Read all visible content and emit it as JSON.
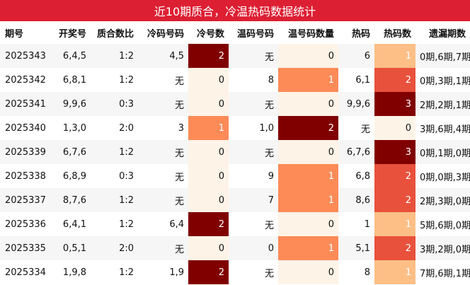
{
  "title": "近10期质合，冷温热码数据统计",
  "columns": [
    "期号",
    "开奖号",
    "质合数比",
    "冷码号码",
    "冷号数",
    "温码号码",
    "温号码数量",
    "热码",
    "热码数",
    "遗漏期数"
  ],
  "heat_colors": {
    "cold": {
      "0": "#fdf3e7",
      "1": "#fc8b58",
      "2": "#800000"
    },
    "warm": {
      "0": "#fdf3e7",
      "1": "#fc8b58",
      "2": "#800000"
    },
    "hot": {
      "0": "#fdf3e7",
      "1": "#fdbf86",
      "2": "#e8513c",
      "3": "#800000"
    }
  },
  "rows": [
    {
      "period": "2025343",
      "draw": "6,4,5",
      "ratio": "1:2",
      "cold_nums": "4,5",
      "cold_count": 2,
      "warm_nums": "无",
      "warm_count": 0,
      "hot_nums": "6",
      "hot_count": 1,
      "miss": "0期,6期,7期"
    },
    {
      "period": "2025342",
      "draw": "6,8,1",
      "ratio": "1:2",
      "cold_nums": "无",
      "cold_count": 0,
      "warm_nums": "8",
      "warm_count": 1,
      "hot_nums": "6,1",
      "hot_count": 2,
      "miss": "0期,3期,1期"
    },
    {
      "period": "2025341",
      "draw": "9,9,6",
      "ratio": "0:3",
      "cold_nums": "无",
      "cold_count": 0,
      "warm_nums": "无",
      "warm_count": 0,
      "hot_nums": "9,9,6",
      "hot_count": 3,
      "miss": "2期,2期,1期"
    },
    {
      "period": "2025340",
      "draw": "1,3,0",
      "ratio": "2:0",
      "cold_nums": "3",
      "cold_count": 1,
      "warm_nums": "1,0",
      "warm_count": 2,
      "hot_nums": "无",
      "hot_count": 0,
      "miss": "3期,6期,4期"
    },
    {
      "period": "2025339",
      "draw": "6,7,6",
      "ratio": "1:2",
      "cold_nums": "无",
      "cold_count": 0,
      "warm_nums": "无",
      "warm_count": 0,
      "hot_nums": "6,7,6",
      "hot_count": 3,
      "miss": "0期,1期,0期"
    },
    {
      "period": "2025338",
      "draw": "6,8,9",
      "ratio": "0:3",
      "cold_nums": "无",
      "cold_count": 0,
      "warm_nums": "9",
      "warm_count": 1,
      "hot_nums": "6,8",
      "hot_count": 2,
      "miss": "0期,0期,3期"
    },
    {
      "period": "2025337",
      "draw": "8,7,6",
      "ratio": "1:2",
      "cold_nums": "无",
      "cold_count": 0,
      "warm_nums": "7",
      "warm_count": 1,
      "hot_nums": "8,6",
      "hot_count": 2,
      "miss": "2期,3期,0期"
    },
    {
      "period": "2025336",
      "draw": "6,4,1",
      "ratio": "1:2",
      "cold_nums": "6,4",
      "cold_count": 2,
      "warm_nums": "无",
      "warm_count": 0,
      "hot_nums": "1",
      "hot_count": 1,
      "miss": "5期,6期,0期"
    },
    {
      "period": "2025335",
      "draw": "0,5,1",
      "ratio": "2:0",
      "cold_nums": "无",
      "cold_count": 0,
      "warm_nums": "0",
      "warm_count": 1,
      "hot_nums": "5,1",
      "hot_count": 2,
      "miss": "3期,2期,0期"
    },
    {
      "period": "2025334",
      "draw": "1,9,8",
      "ratio": "1:2",
      "cold_nums": "1,9",
      "cold_count": 2,
      "warm_nums": "无",
      "warm_count": 0,
      "hot_nums": "8",
      "hot_count": 1,
      "miss": "7期,6期,1期"
    }
  ]
}
